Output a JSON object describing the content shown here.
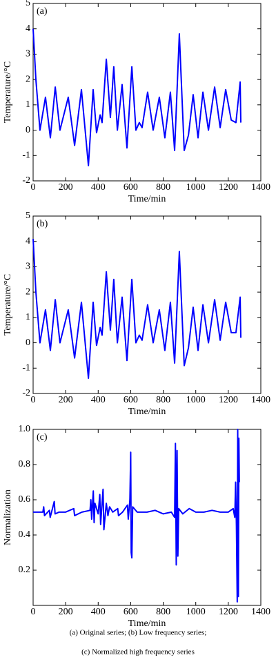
{
  "chart_data": [
    {
      "type": "line",
      "label": "(a)",
      "xlabel": "Time/min",
      "ylabel": "Temperature/°C",
      "x": [
        0,
        17,
        42,
        76,
        106,
        136,
        165,
        216,
        255,
        297,
        340,
        369,
        390,
        412,
        424,
        450,
        475,
        496,
        518,
        547,
        577,
        607,
        632,
        653,
        670,
        704,
        738,
        776,
        810,
        844,
        870,
        899,
        929,
        955,
        984,
        1014,
        1044,
        1078,
        1116,
        1150,
        1184,
        1218,
        1247,
        1273,
        1277
      ],
      "values": [
        4,
        2,
        0,
        1.3,
        -0.3,
        1.7,
        0,
        1.3,
        -0.6,
        1.6,
        -1.4,
        1.6,
        -0.1,
        0.6,
        0.3,
        2.8,
        0.5,
        2.5,
        0,
        1.8,
        -0.7,
        2.5,
        0,
        0.3,
        0.1,
        1.5,
        0,
        1.3,
        -0.3,
        1.5,
        -0.8,
        3.8,
        -0.8,
        -0.2,
        1.4,
        -0.3,
        1.5,
        0,
        1.7,
        0.1,
        1.6,
        0.4,
        0.3,
        1.9,
        0.3
      ],
      "color": "#0000ff",
      "xlim": [
        0,
        1400
      ],
      "xticks": [
        0,
        200,
        400,
        600,
        800,
        1000,
        1200,
        1400
      ],
      "ylim": [
        -2,
        5
      ],
      "yticks": [
        -2,
        -1,
        0,
        1,
        2,
        3,
        4,
        5
      ]
    },
    {
      "type": "line",
      "label": "(b)",
      "xlabel": "Time/min",
      "ylabel": "Temperature/°C",
      "x": [
        0,
        17,
        42,
        76,
        106,
        136,
        165,
        216,
        255,
        297,
        340,
        369,
        390,
        412,
        424,
        450,
        475,
        496,
        518,
        547,
        577,
        607,
        632,
        653,
        670,
        704,
        738,
        776,
        810,
        844,
        870,
        899,
        929,
        955,
        984,
        1014,
        1044,
        1078,
        1116,
        1150,
        1184,
        1218,
        1247,
        1273,
        1277
      ],
      "values": [
        4.1,
        2,
        0,
        1.3,
        -0.3,
        1.7,
        0,
        1.3,
        -0.6,
        1.6,
        -1.4,
        1.6,
        -0.1,
        0.6,
        0.3,
        2.8,
        0.5,
        2.5,
        0,
        1.8,
        -0.7,
        2.5,
        0,
        0.3,
        0.1,
        1.5,
        0,
        1.3,
        -0.3,
        1.6,
        -0.8,
        3.6,
        -0.9,
        -0.2,
        1.4,
        -0.3,
        1.5,
        0,
        1.7,
        0.1,
        1.6,
        0.4,
        0.4,
        1.8,
        0.2
      ],
      "color": "#0000ff",
      "xlim": [
        0,
        1400
      ],
      "xticks": [
        0,
        200,
        400,
        600,
        800,
        1000,
        1200,
        1400
      ],
      "ylim": [
        -2,
        5
      ],
      "yticks": [
        -2,
        -1,
        0,
        1,
        2,
        3,
        4,
        5
      ]
    },
    {
      "type": "line",
      "label": "(c)",
      "xlabel": "Time/min",
      "ylabel": "Normalization",
      "x": [
        0,
        60,
        65,
        70,
        100,
        105,
        130,
        135,
        160,
        200,
        250,
        255,
        300,
        350,
        355,
        360,
        370,
        375,
        380,
        400,
        410,
        415,
        430,
        435,
        450,
        460,
        470,
        490,
        520,
        525,
        550,
        580,
        585,
        595,
        600,
        603,
        607,
        612,
        640,
        700,
        750,
        800,
        850,
        870,
        875,
        880,
        885,
        890,
        895,
        920,
        960,
        1000,
        1050,
        1100,
        1150,
        1200,
        1230,
        1240,
        1245,
        1250,
        1255,
        1258,
        1262,
        1265,
        1268
      ],
      "values": [
        0.53,
        0.53,
        0.56,
        0.51,
        0.54,
        0.5,
        0.59,
        0.52,
        0.53,
        0.53,
        0.55,
        0.51,
        0.53,
        0.54,
        0.6,
        0.49,
        0.65,
        0.47,
        0.58,
        0.52,
        0.63,
        0.46,
        0.66,
        0.43,
        0.58,
        0.51,
        0.56,
        0.53,
        0.55,
        0.51,
        0.53,
        0.57,
        0.49,
        0.6,
        0.87,
        0.3,
        0.27,
        0.56,
        0.53,
        0.53,
        0.54,
        0.52,
        0.53,
        0.5,
        0.92,
        0.23,
        0.88,
        0.28,
        0.55,
        0.52,
        0.55,
        0.53,
        0.53,
        0.54,
        0.53,
        0.53,
        0.55,
        0.5,
        0.7,
        0.45,
        0.02,
        1.0,
        0.05,
        0.95,
        0.7
      ],
      "color": "#0000ff",
      "xlim": [
        0,
        1400
      ],
      "xticks": [
        0,
        200,
        400,
        600,
        800,
        1000,
        1200,
        1400
      ],
      "ylim": [
        0,
        1
      ],
      "yticks": [
        0.2,
        0.4,
        0.6,
        0.8,
        {
          "value": 1,
          "label": "1.0"
        }
      ]
    }
  ],
  "caption": [
    "(a) Original series; (b) Low frequency series;",
    "(c) Normalized high frequency series"
  ]
}
